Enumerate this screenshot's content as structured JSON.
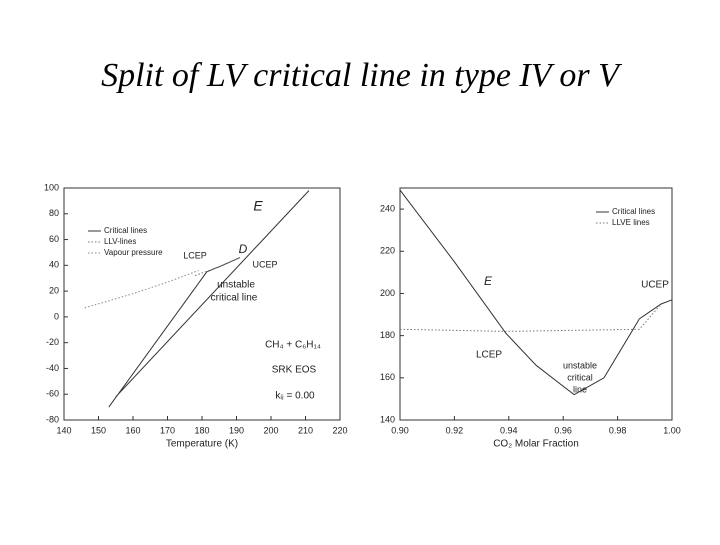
{
  "title": "Split of LV critical line in type IV or V",
  "chart_data": [
    {
      "type": "line",
      "xlabel": "Temperature (K)",
      "xlim": [
        140,
        220
      ],
      "xticks": [
        140,
        150,
        160,
        170,
        180,
        190,
        200,
        210,
        220
      ],
      "ylim": [
        -80,
        100
      ],
      "yticks": [
        -80,
        -60,
        -40,
        -20,
        0,
        20,
        40,
        60,
        80,
        100
      ],
      "series": [
        {
          "name": "Critical lines",
          "color": "#333333",
          "style": "solid",
          "x": [
            155,
            211,
            null,
            153,
            181.4,
            null,
            181.4,
            186,
            191
          ],
          "values": [
            -62,
            98,
            null,
            -70,
            35,
            null,
            35,
            40,
            46
          ]
        },
        {
          "name": "LLV-lines",
          "color": "#777777",
          "style": "dotted",
          "x": [
            178,
            184,
            191
          ],
          "values": [
            32,
            38,
            46
          ]
        },
        {
          "name": "Vapour pressure",
          "color": "#888888",
          "style": "dotted",
          "x": [
            146,
            160,
            170,
            179
          ],
          "values": [
            7,
            18,
            27,
            36
          ]
        }
      ],
      "annotations": [
        "E",
        "D",
        "LCEP",
        "UCEP",
        "unstable",
        "critical line",
        "CH₄ + C₆H₁₄",
        "SRK EOS",
        "kᵢⱼ = 0.00"
      ]
    },
    {
      "type": "line",
      "xlabel": "CO₂ Molar Fraction",
      "xlim": [
        0.9,
        1.0
      ],
      "xticks": [
        {
          "value": 0.9,
          "label": "0.90"
        },
        {
          "value": 0.92,
          "label": "0.92"
        },
        {
          "value": 0.94,
          "label": "0.94"
        },
        {
          "value": 0.96,
          "label": "0.96"
        },
        {
          "value": 0.98,
          "label": "0.98"
        },
        {
          "value": 1.0,
          "label": "1.00"
        }
      ],
      "ylim": [
        140,
        250
      ],
      "yticks": [
        140,
        160,
        180,
        200,
        220,
        240
      ],
      "series": [
        {
          "name": "Critical lines",
          "color": "#333333",
          "style": "solid",
          "x": [
            0.9,
            0.92,
            0.939,
            0.95,
            0.964,
            0.975,
            0.988,
            0.996,
            1.0
          ],
          "values": [
            249,
            215,
            181,
            166,
            152,
            160,
            188,
            195,
            197
          ]
        },
        {
          "name": "LLVE lines",
          "color": "#777777",
          "style": "dotted",
          "x": [
            0.9,
            0.939,
            0.988,
            0.996
          ],
          "values": [
            183,
            182,
            183,
            195
          ]
        }
      ],
      "annotations": [
        "E",
        "UCEP",
        "LCEP",
        "unstable",
        "critical",
        "line"
      ]
    }
  ]
}
